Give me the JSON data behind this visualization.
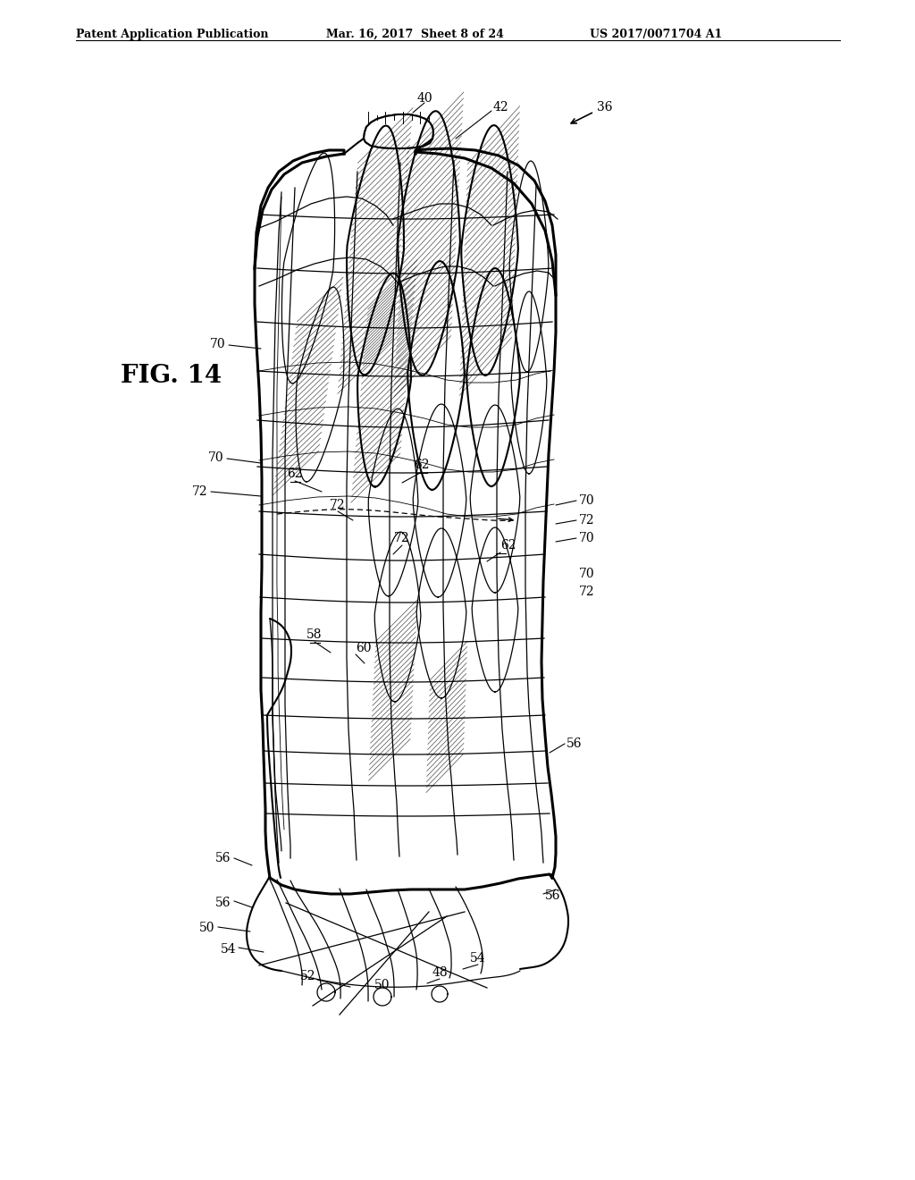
{
  "title_left": "Patent Application Publication",
  "title_mid": "Mar. 16, 2017  Sheet 8 of 24",
  "title_right": "US 2017/0071704 A1",
  "fig_label": "FIG. 14",
  "background_color": "#ffffff",
  "line_color": "#000000"
}
